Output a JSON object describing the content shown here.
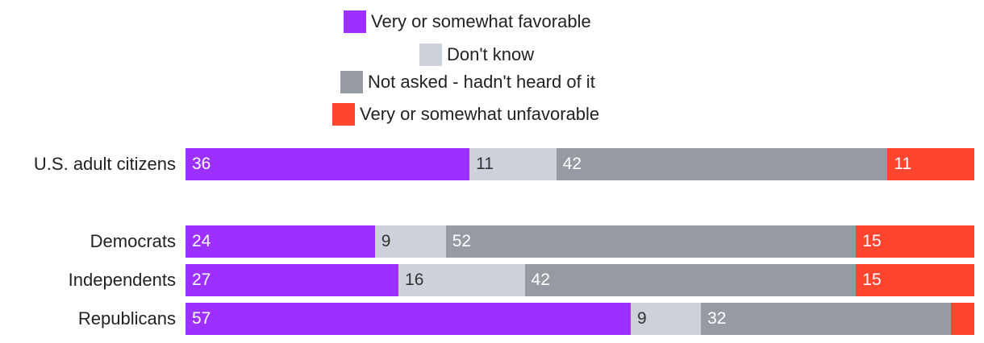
{
  "chart_data": {
    "type": "bar",
    "orientation": "horizontal",
    "stacked": true,
    "xlim": [
      0,
      100
    ],
    "legend_position": "top-center",
    "categories": [
      "U.S. adult citizens",
      "Democrats",
      "Independents",
      "Republicans"
    ],
    "series": [
      {
        "name": "Very or somewhat favorable",
        "color": "#9b30ff",
        "values": [
          36,
          24,
          27,
          57
        ],
        "labels": [
          "36",
          "24",
          "27",
          "57"
        ]
      },
      {
        "name": "Don't know",
        "color": "#cdd1da",
        "values": [
          11,
          9,
          16,
          9
        ],
        "labels": [
          "11",
          "9",
          "16",
          "9"
        ]
      },
      {
        "name": "Not asked - hadn't heard of it",
        "color": "#969aa3",
        "values": [
          42,
          52,
          42,
          32
        ],
        "labels": [
          "42",
          "52",
          "42",
          "32"
        ]
      },
      {
        "name": "Very or somewhat unfavorable",
        "color": "#ff4530",
        "values": [
          11,
          15,
          15,
          3
        ],
        "labels": [
          "11",
          "15",
          "15",
          ""
        ]
      }
    ]
  }
}
